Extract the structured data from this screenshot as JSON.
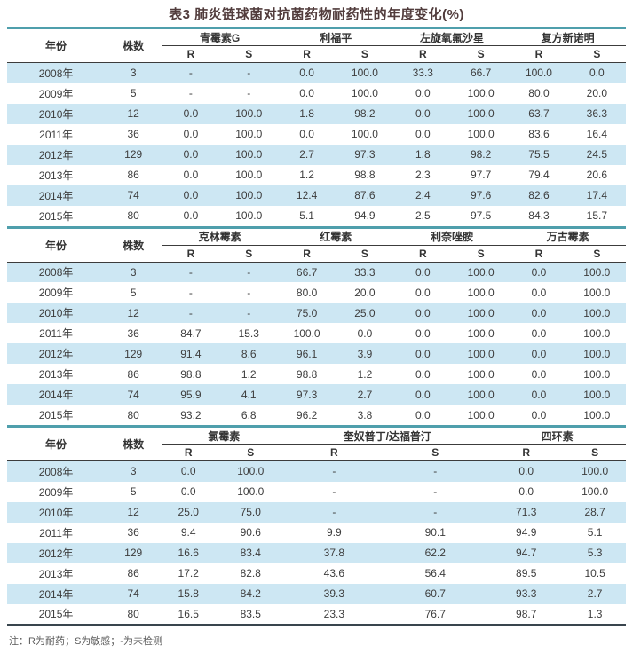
{
  "title": "表3  肺炎链球菌对抗菌药物耐药性的年度变化(%)",
  "columns": {
    "year": "年份",
    "count": "株数",
    "r": "R",
    "s": "S"
  },
  "sections": [
    {
      "drugs": [
        "青霉素G",
        "利福平",
        "左旋氧氟沙星",
        "复方新诺明"
      ],
      "rows": [
        {
          "year": "2008年",
          "count": "3",
          "values": [
            "-",
            "-",
            "0.0",
            "100.0",
            "33.3",
            "66.7",
            "100.0",
            "0.0"
          ]
        },
        {
          "year": "2009年",
          "count": "5",
          "values": [
            "-",
            "-",
            "0.0",
            "100.0",
            "0.0",
            "100.0",
            "80.0",
            "20.0"
          ]
        },
        {
          "year": "2010年",
          "count": "12",
          "values": [
            "0.0",
            "100.0",
            "1.8",
            "98.2",
            "0.0",
            "100.0",
            "63.7",
            "36.3"
          ]
        },
        {
          "year": "2011年",
          "count": "36",
          "values": [
            "0.0",
            "100.0",
            "0.0",
            "100.0",
            "0.0",
            "100.0",
            "83.6",
            "16.4"
          ]
        },
        {
          "year": "2012年",
          "count": "129",
          "values": [
            "0.0",
            "100.0",
            "2.7",
            "97.3",
            "1.8",
            "98.2",
            "75.5",
            "24.5"
          ]
        },
        {
          "year": "2013年",
          "count": "86",
          "values": [
            "0.0",
            "100.0",
            "1.2",
            "98.8",
            "2.3",
            "97.7",
            "79.4",
            "20.6"
          ]
        },
        {
          "year": "2014年",
          "count": "74",
          "values": [
            "0.0",
            "100.0",
            "12.4",
            "87.6",
            "2.4",
            "97.6",
            "82.6",
            "17.4"
          ]
        },
        {
          "year": "2015年",
          "count": "80",
          "values": [
            "0.0",
            "100.0",
            "5.1",
            "94.9",
            "2.5",
            "97.5",
            "84.3",
            "15.7"
          ]
        }
      ]
    },
    {
      "drugs": [
        "克林霉素",
        "红霉素",
        "利奈唑胺",
        "万古霉素"
      ],
      "rows": [
        {
          "year": "2008年",
          "count": "3",
          "values": [
            "-",
            "-",
            "66.7",
            "33.3",
            "0.0",
            "100.0",
            "0.0",
            "100.0"
          ]
        },
        {
          "year": "2009年",
          "count": "5",
          "values": [
            "-",
            "-",
            "80.0",
            "20.0",
            "0.0",
            "100.0",
            "0.0",
            "100.0"
          ]
        },
        {
          "year": "2010年",
          "count": "12",
          "values": [
            "-",
            "-",
            "75.0",
            "25.0",
            "0.0",
            "100.0",
            "0.0",
            "100.0"
          ]
        },
        {
          "year": "2011年",
          "count": "36",
          "values": [
            "84.7",
            "15.3",
            "100.0",
            "0.0",
            "0.0",
            "100.0",
            "0.0",
            "100.0"
          ]
        },
        {
          "year": "2012年",
          "count": "129",
          "values": [
            "91.4",
            "8.6",
            "96.1",
            "3.9",
            "0.0",
            "100.0",
            "0.0",
            "100.0"
          ]
        },
        {
          "year": "2013年",
          "count": "86",
          "values": [
            "98.8",
            "1.2",
            "98.8",
            "1.2",
            "0.0",
            "100.0",
            "0.0",
            "100.0"
          ]
        },
        {
          "year": "2014年",
          "count": "74",
          "values": [
            "95.9",
            "4.1",
            "97.3",
            "2.7",
            "0.0",
            "100.0",
            "0.0",
            "100.0"
          ]
        },
        {
          "year": "2015年",
          "count": "80",
          "values": [
            "93.2",
            "6.8",
            "96.2",
            "3.8",
            "0.0",
            "100.0",
            "0.0",
            "100.0"
          ]
        }
      ]
    },
    {
      "drugs": [
        "氯霉素",
        "奎奴普丁/达福普汀",
        "四环素"
      ],
      "rows": [
        {
          "year": "2008年",
          "count": "3",
          "values": [
            "0.0",
            "100.0",
            "-",
            "-",
            "0.0",
            "100.0"
          ]
        },
        {
          "year": "2009年",
          "count": "5",
          "values": [
            "0.0",
            "100.0",
            "-",
            "-",
            "0.0",
            "100.0"
          ]
        },
        {
          "year": "2010年",
          "count": "12",
          "values": [
            "25.0",
            "75.0",
            "-",
            "-",
            "71.3",
            "28.7"
          ]
        },
        {
          "year": "2011年",
          "count": "36",
          "values": [
            "9.4",
            "90.6",
            "9.9",
            "90.1",
            "94.9",
            "5.1"
          ]
        },
        {
          "year": "2012年",
          "count": "129",
          "values": [
            "16.6",
            "83.4",
            "37.8",
            "62.2",
            "94.7",
            "5.3"
          ]
        },
        {
          "year": "2013年",
          "count": "86",
          "values": [
            "17.2",
            "82.8",
            "43.6",
            "56.4",
            "89.5",
            "10.5"
          ]
        },
        {
          "year": "2014年",
          "count": "74",
          "values": [
            "15.8",
            "84.2",
            "39.3",
            "60.7",
            "93.3",
            "2.7"
          ]
        },
        {
          "year": "2015年",
          "count": "80",
          "values": [
            "16.5",
            "83.5",
            "23.3",
            "76.7",
            "98.7",
            "1.3"
          ]
        }
      ]
    }
  ],
  "note": "注：R为耐药；S为敏感；-为未检测",
  "colors": {
    "stripe_blue": "#cde7f3",
    "teal_divider": "#4f9fac",
    "title_text": "#513c3c"
  }
}
